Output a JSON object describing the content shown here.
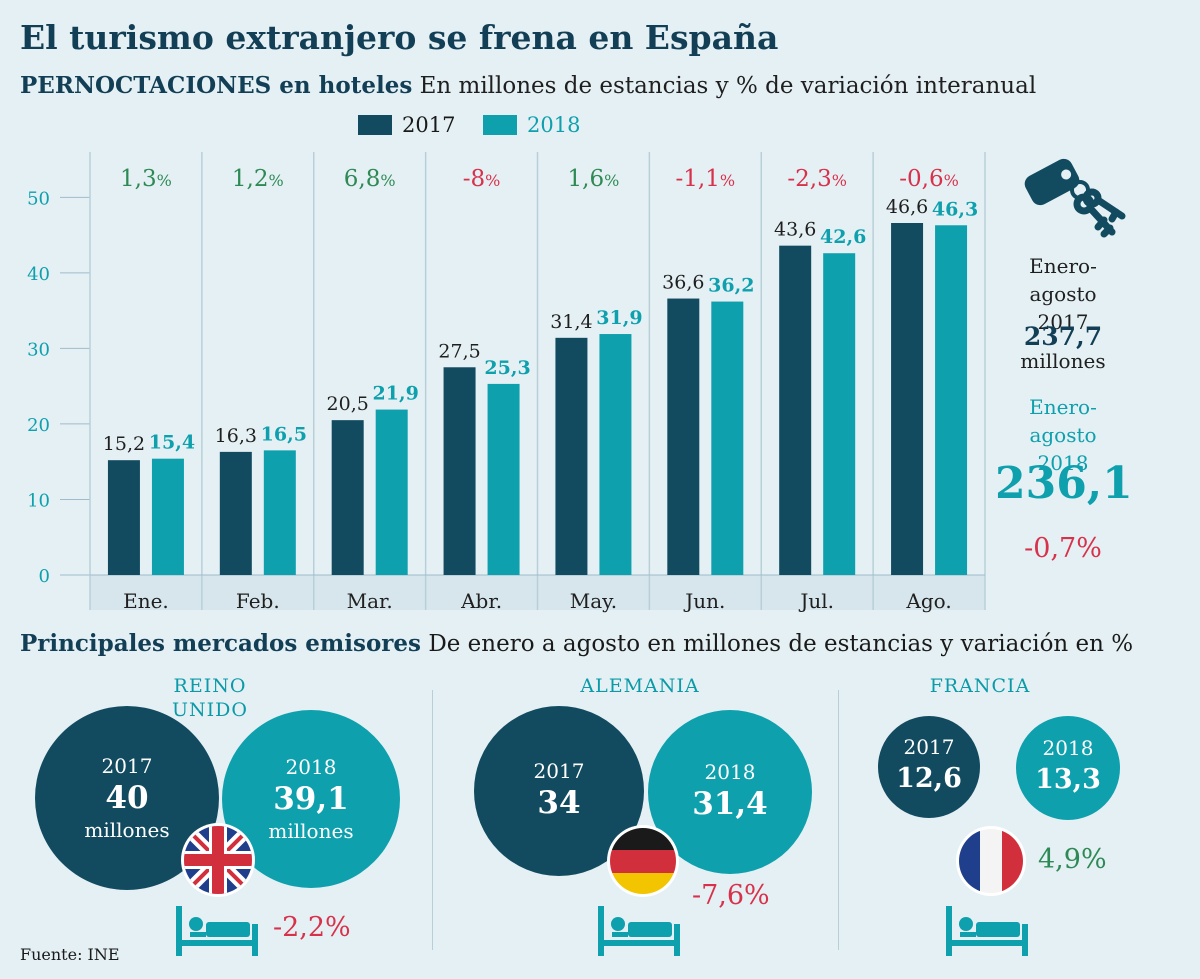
{
  "title": "El turismo extranjero se frena en España",
  "subtitle_bold": "PERNOCTACIONES en hoteles",
  "subtitle_rest": "En millones de estancias y % de variación interanual",
  "colors": {
    "y2017": "#124b60",
    "y2018": "#0ea0ad",
    "negative": "#d8314b",
    "positive": "#2e8a55"
  },
  "chart_data": {
    "type": "bar",
    "categories": [
      "Ene.",
      "Feb.",
      "Mar.",
      "Abr.",
      "May.",
      "Jun.",
      "Jul.",
      "Ago."
    ],
    "series": [
      {
        "name": "2017",
        "values": [
          15.2,
          16.3,
          20.5,
          27.5,
          31.4,
          36.6,
          43.6,
          46.6
        ],
        "labels": [
          "15,2",
          "16,3",
          "20,5",
          "27,5",
          "31,4",
          "36,6",
          "43,6",
          "46,6"
        ]
      },
      {
        "name": "2018",
        "values": [
          15.4,
          16.5,
          21.9,
          25.3,
          31.9,
          36.2,
          42.6,
          46.3
        ],
        "labels": [
          "15,4",
          "16,5",
          "21,9",
          "25,3",
          "31,9",
          "36,2",
          "42,6",
          "46,3"
        ]
      }
    ],
    "variation_labels": [
      "1,3",
      "1,2",
      "6,8",
      "-8",
      "1,6",
      "-1,1",
      "-2,3",
      "-0,6"
    ],
    "variation_values": [
      1.3,
      1.2,
      6.8,
      -8,
      1.6,
      -1.1,
      -2.3,
      -0.6
    ],
    "pct_sign": "%",
    "yticks": [
      0,
      10,
      20,
      30,
      40,
      50
    ],
    "ylim": [
      0,
      56
    ],
    "title": "PERNOCTACIONES en hoteles",
    "xlabel": "",
    "ylabel": ""
  },
  "summary": {
    "label_2017": "Enero-agosto 2017",
    "label_2017_l1": "Enero-",
    "label_2017_l2": "agosto 2017",
    "value_2017": "237,7",
    "unit_2017": "millones",
    "label_2018_l1": "Enero-",
    "label_2018_l2": "agosto 2018",
    "value_2018": "236,1",
    "change": "-0,7%"
  },
  "markets": {
    "title_bold": "Principales mercados emisores",
    "title_rest": "De enero a agosto en millones de estancias y variación en %",
    "items": [
      {
        "country_l1": "REINO",
        "country_l2": "UNIDO",
        "year_a": "2017",
        "value_a": "40",
        "unit_a": "millones",
        "year_b": "2018",
        "value_b": "39,1",
        "unit_b": "millones",
        "change": "-2,2%",
        "flag": "uk-flag-icon"
      },
      {
        "country": "ALEMANIA",
        "year_a": "2017",
        "value_a": "34",
        "year_b": "2018",
        "value_b": "31,4",
        "change": "-7,6%",
        "flag": "germany-flag-icon"
      },
      {
        "country": "FRANCIA",
        "year_a": "2017",
        "value_a": "12,6",
        "year_b": "2018",
        "value_b": "13,3",
        "change": "4,9%",
        "flag": "france-flag-icon"
      }
    ]
  },
  "source": "Fuente: INE"
}
